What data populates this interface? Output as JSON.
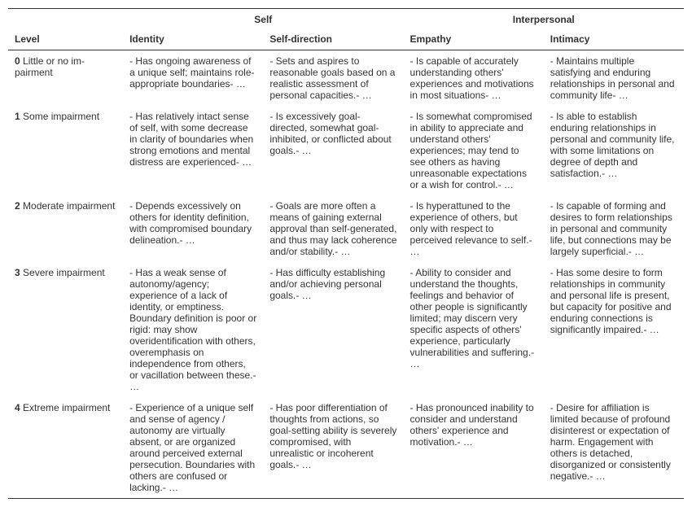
{
  "headers": {
    "group_self": "Self",
    "group_interpersonal": "Interpersonal",
    "level": "Level",
    "identity": "Identity",
    "self_direction": "Self-direction",
    "empathy": "Empathy",
    "intimacy": "Intimacy"
  },
  "rows": [
    {
      "num": "0",
      "label": " Little or no im-pairment",
      "identity": "- Has ongoing awareness of a unique self; maintains role-appropriate boundaries- …",
      "self_direction": "- Sets and aspires to reasonable goals based on a realistic assessment of personal capacities.- …",
      "empathy": "- Is capable of accurately understanding others' experiences and motivations in most situations- …",
      "intimacy": "- Maintains multiple satisfying and enduring relationships in personal and community life- …"
    },
    {
      "num": "1",
      "label": " Some impairment",
      "identity": "- Has relatively intact sense of self, with some decrease in clarity of boundaries when strong emotions and mental distress are experienced- …",
      "self_direction": "- Is excessively goal-directed, somewhat goal-inhibited, or conflicted about goals.- …",
      "empathy": "- Is somewhat compromised in ability to appreciate and understand others' experiences; may tend to see others as having unreasonable expectations or a wish for control.- …",
      "intimacy": "- Is able to establish enduring relationships in personal and community life, with some limitations on degree of depth and satisfaction.- …"
    },
    {
      "num": "2",
      "label": " Moderate impairment",
      "identity": "- Depends excessively on others for identity definition, with compromised boundary delineation.- …",
      "self_direction": "- Goals are more often a means of gaining external approval than self-generated, and thus may lack coherence and/or stability.- …",
      "empathy": "- Is hyperattuned to the experience of others, but only with respect to perceived relevance to self.- …",
      "intimacy": "- Is capable of forming and desires to form relationships in personal and community life, but connections may be largely superficial.- …"
    },
    {
      "num": "3",
      "label": " Severe impairment",
      "identity": "- Has a weak sense of autonomy/agency; experience of a lack of identity, or emptiness. Boundary definition is poor or rigid: may show overidentification with others, overemphasis on independence from others, or vacillation between these.- …",
      "self_direction": "- Has difficulty establishing and/or achieving personal goals.- …",
      "empathy": "- Ability to consider and understand the thoughts, feelings and behavior of other people is significantly limited; may discern very specific aspects of others' experience, particularly vulnerabilities and suffering.- …",
      "intimacy": "- Has some desire to form relationships in community and personal life is present, but capacity for positive and enduring connections is significantly impaired.- …"
    },
    {
      "num": "4",
      "label": " Extreme impairment",
      "identity": "- Experience of a unique self and sense of agency / autonomy are virtually absent, or are organized around perceived external persecution. Boundaries with others are confused or lacking.- …",
      "self_direction": "- Has poor differentiation of thoughts from actions, so goal-setting ability is severely compromised, with unrealistic or incoherent goals.- …",
      "empathy": "- Has pronounced inability to consider and understand others' experience and motivation.- …",
      "intimacy": "- Desire for affiliation is limited because of profound disinterest or expectation of harm. Engagement with others is detached, disorganized or consistently negative.- …"
    }
  ]
}
